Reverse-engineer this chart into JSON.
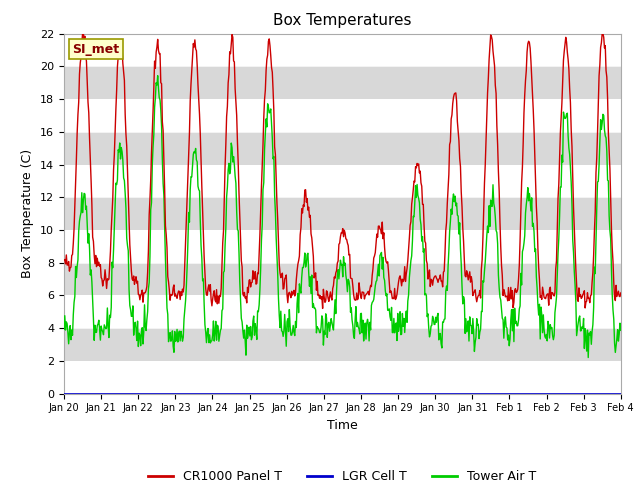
{
  "title": "Box Temperatures",
  "xlabel": "Time",
  "ylabel": "Box Temperature (C)",
  "ylim": [
    0,
    22
  ],
  "yticks": [
    0,
    2,
    4,
    6,
    8,
    10,
    12,
    14,
    16,
    18,
    20,
    22
  ],
  "x_tick_labels": [
    "Jan 20",
    "Jan 21",
    "Jan 22",
    "Jan 23",
    "Jan 24",
    "Jan 25",
    "Jan 26",
    "Jan 27",
    "Jan 28",
    "Jan 29",
    "Jan 30",
    "Jan 31",
    "Feb 1",
    "Feb 2",
    "Feb 3",
    "Feb 4"
  ],
  "panel_color": "#cc0000",
  "lgr_color": "#0000cc",
  "tower_color": "#00cc00",
  "band_colors": [
    "#ffffff",
    "#d8d8d8"
  ],
  "watermark_text": "SI_met",
  "watermark_bg": "#ffffcc",
  "watermark_border": "#999900",
  "legend_labels": [
    "CR1000 Panel T",
    "LGR Cell T",
    "Tower Air T"
  ],
  "fig_bg": "#ffffff",
  "title_fontsize": 11,
  "axis_label_fontsize": 9,
  "tick_fontsize": 8,
  "legend_fontsize": 9
}
